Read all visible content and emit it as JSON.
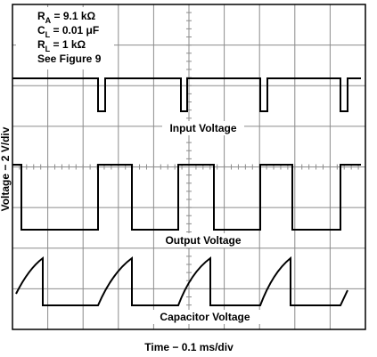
{
  "chart_data": {
    "type": "oscilloscope",
    "conditions": [
      {
        "symbol": "R",
        "subscript": "A",
        "text": " = 9.1 kΩ"
      },
      {
        "symbol": "C",
        "subscript": "L",
        "text": " = 0.01 μF"
      },
      {
        "symbol": "R",
        "subscript": "L",
        "text": " = 1 kΩ"
      },
      {
        "text": "See Figure 9"
      }
    ],
    "trace_labels": [
      "Input Voltage",
      "Output Voltage",
      "Capacitor Voltage"
    ],
    "ylabel": "Voltage − 2 V/div",
    "xlabel": "Time − 0.1 ms/div",
    "grid": true
  }
}
